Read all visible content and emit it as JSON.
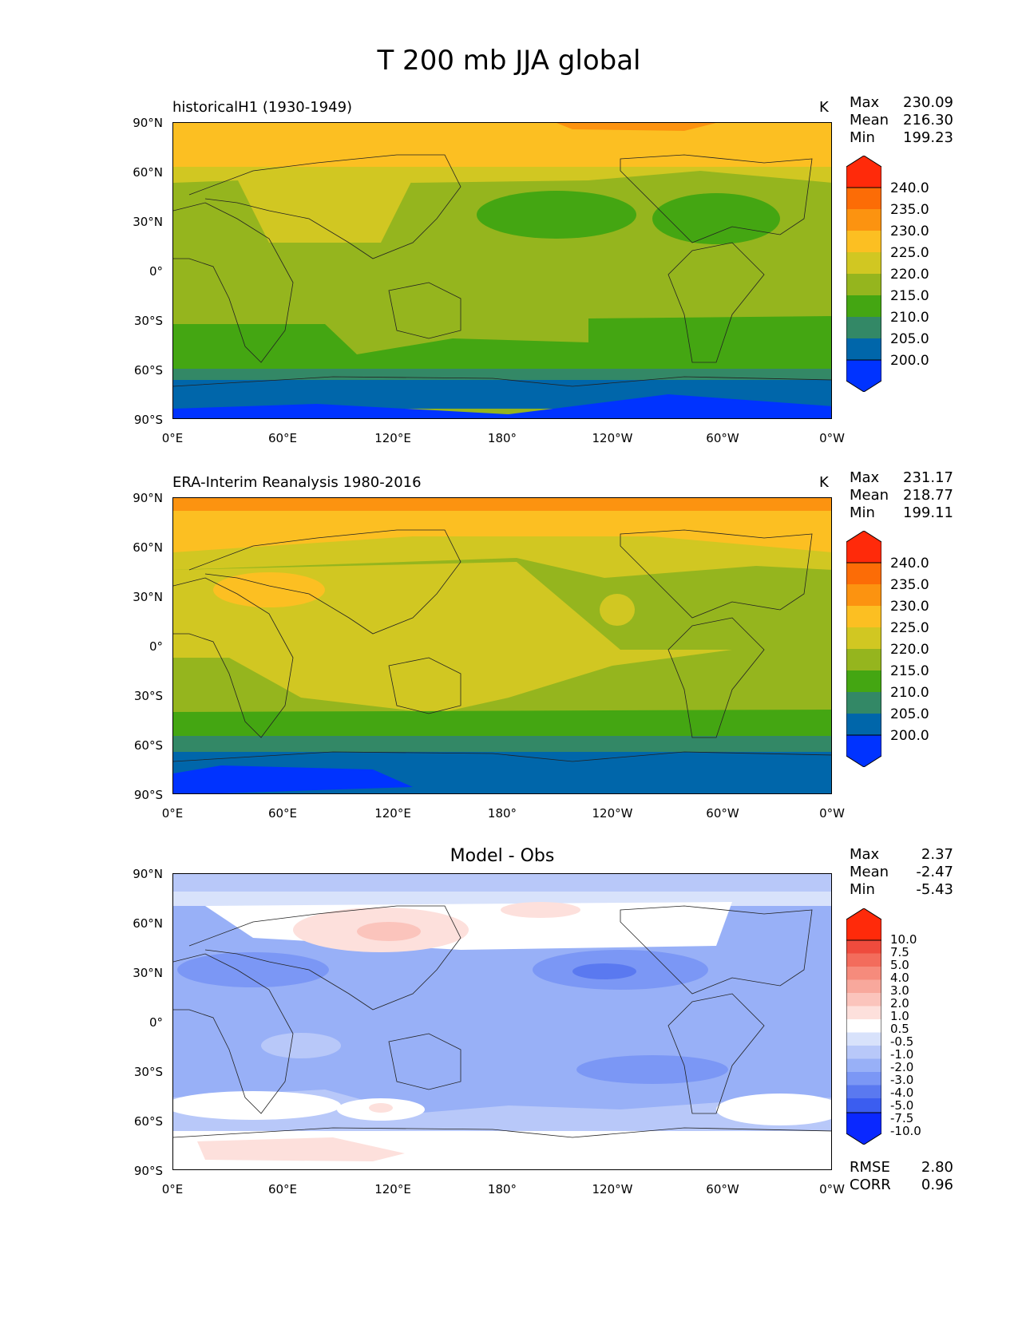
{
  "figure": {
    "title": "T 200 mb JJA global"
  },
  "axes": {
    "y_ticks": [
      "90°N",
      "60°N",
      "30°N",
      "0°",
      "30°S",
      "60°S",
      "90°S"
    ],
    "x_ticks": [
      "0°E",
      "60°E",
      "120°E",
      "180°",
      "120°W",
      "60°W",
      "0°W"
    ]
  },
  "colors": {
    "temp": [
      "#0033ff",
      "#0066aa",
      "#338866",
      "#44a612",
      "#95b51e",
      "#d1c722",
      "#fcbf22",
      "#fc9310",
      "#fc6c06",
      "#ff2a0a"
    ],
    "diff": [
      "#0a28ff",
      "#3b5df0",
      "#5a79f0",
      "#7b97f5",
      "#98b0f7",
      "#b8c8f9",
      "#d8e2fb",
      "#ffffff",
      "#fde0dc",
      "#fbc4bc",
      "#f8a89c",
      "#f68b7c",
      "#f36c5c",
      "#ef4b3d",
      "#ff2a0a"
    ]
  },
  "panels": [
    {
      "title": "historicalH1 (1930-1949)",
      "units": "K",
      "stats": {
        "max_label": "Max",
        "max": "230.09",
        "mean_label": "Mean",
        "mean": "216.30",
        "min_label": "Min",
        "min": "199.23"
      },
      "colorbar": [
        "240.0",
        "235.0",
        "230.0",
        "225.0",
        "220.0",
        "215.0",
        "210.0",
        "205.0",
        "200.0"
      ]
    },
    {
      "title": "ERA-Interim Reanalysis 1980-2016",
      "units": "K",
      "stats": {
        "max_label": "Max",
        "max": "231.17",
        "mean_label": "Mean",
        "mean": "218.77",
        "min_label": "Min",
        "min": "199.11"
      },
      "colorbar": [
        "240.0",
        "235.0",
        "230.0",
        "225.0",
        "220.0",
        "215.0",
        "210.0",
        "205.0",
        "200.0"
      ]
    },
    {
      "title": "Model - Obs",
      "stats": {
        "max_label": "Max",
        "max": "2.37",
        "mean_label": "Mean",
        "mean": "-2.47",
        "min_label": "Min",
        "min": "-5.43"
      },
      "colorbar": [
        "10.0",
        "7.5",
        "5.0",
        "4.0",
        "3.0",
        "2.0",
        "1.0",
        "0.5",
        "-0.5",
        "-1.0",
        "-2.0",
        "-3.0",
        "-4.0",
        "-5.0",
        "-7.5",
        "-10.0"
      ],
      "metrics": {
        "rmse_label": "RMSE",
        "rmse": "2.80",
        "corr_label": "CORR",
        "corr": "0.96"
      }
    }
  ],
  "chart_data": [
    {
      "type": "heatmap",
      "title": "historicalH1 (1930-1949)",
      "variable": "T 200 mb JJA global",
      "units": "K",
      "xlim": [
        0,
        360
      ],
      "ylim": [
        -90,
        90
      ],
      "levels": [
        195,
        200,
        205,
        210,
        215,
        220,
        225,
        230,
        235,
        240,
        245
      ],
      "zonal_bands": [
        {
          "lat": [
            -90,
            -80
          ],
          "value": 197
        },
        {
          "lat": [
            -80,
            -70
          ],
          "value": 202
        },
        {
          "lat": [
            -70,
            -60
          ],
          "value": 207
        },
        {
          "lat": [
            -60,
            -30
          ],
          "value": 212
        },
        {
          "lat": [
            -30,
            50
          ],
          "value": 217
        },
        {
          "lat": [
            50,
            70
          ],
          "value": 222
        },
        {
          "lat": [
            70,
            90
          ],
          "value": 227
        }
      ],
      "stats": {
        "max": 230.09,
        "mean": 216.3,
        "min": 199.23
      }
    },
    {
      "type": "heatmap",
      "title": "ERA-Interim Reanalysis 1980-2016",
      "variable": "T 200 mb JJA global",
      "units": "K",
      "xlim": [
        0,
        360
      ],
      "ylim": [
        -90,
        90
      ],
      "levels": [
        195,
        200,
        205,
        210,
        215,
        220,
        225,
        230,
        235,
        240,
        245
      ],
      "zonal_bands": [
        {
          "lat": [
            -90,
            -80
          ],
          "value": 197
        },
        {
          "lat": [
            -80,
            -68
          ],
          "value": 202
        },
        {
          "lat": [
            -68,
            -60
          ],
          "value": 207
        },
        {
          "lat": [
            -60,
            -45
          ],
          "value": 212
        },
        {
          "lat": [
            -45,
            -15
          ],
          "value": 217
        },
        {
          "lat": [
            -15,
            55
          ],
          "value": 222
        },
        {
          "lat": [
            55,
            85
          ],
          "value": 227
        },
        {
          "lat": [
            85,
            90
          ],
          "value": 232
        }
      ],
      "stats": {
        "max": 231.17,
        "mean": 218.77,
        "min": 199.11
      }
    },
    {
      "type": "heatmap",
      "title": "Model - Obs",
      "xlim": [
        0,
        360
      ],
      "ylim": [
        -90,
        90
      ],
      "levels": [
        -15,
        -10,
        -7.5,
        -5,
        -4,
        -3,
        -2,
        -1,
        -0.5,
        0.5,
        1,
        2,
        3,
        4,
        5,
        7.5,
        10,
        15
      ],
      "zonal_bands": [
        {
          "lat": [
            -90,
            -75
          ],
          "value": 0.8
        },
        {
          "lat": [
            -75,
            -60
          ],
          "value": -1.5
        },
        {
          "lat": [
            -60,
            -40
          ],
          "value": 0.0
        },
        {
          "lat": [
            -40,
            0
          ],
          "value": -2.5
        },
        {
          "lat": [
            0,
            45
          ],
          "value": -3.5
        },
        {
          "lat": [
            45,
            75
          ],
          "value": 0.7
        },
        {
          "lat": [
            75,
            90
          ],
          "value": -1.5
        }
      ],
      "stats": {
        "max": 2.37,
        "mean": -2.47,
        "min": -5.43
      },
      "rmse": 2.8,
      "corr": 0.96
    }
  ]
}
